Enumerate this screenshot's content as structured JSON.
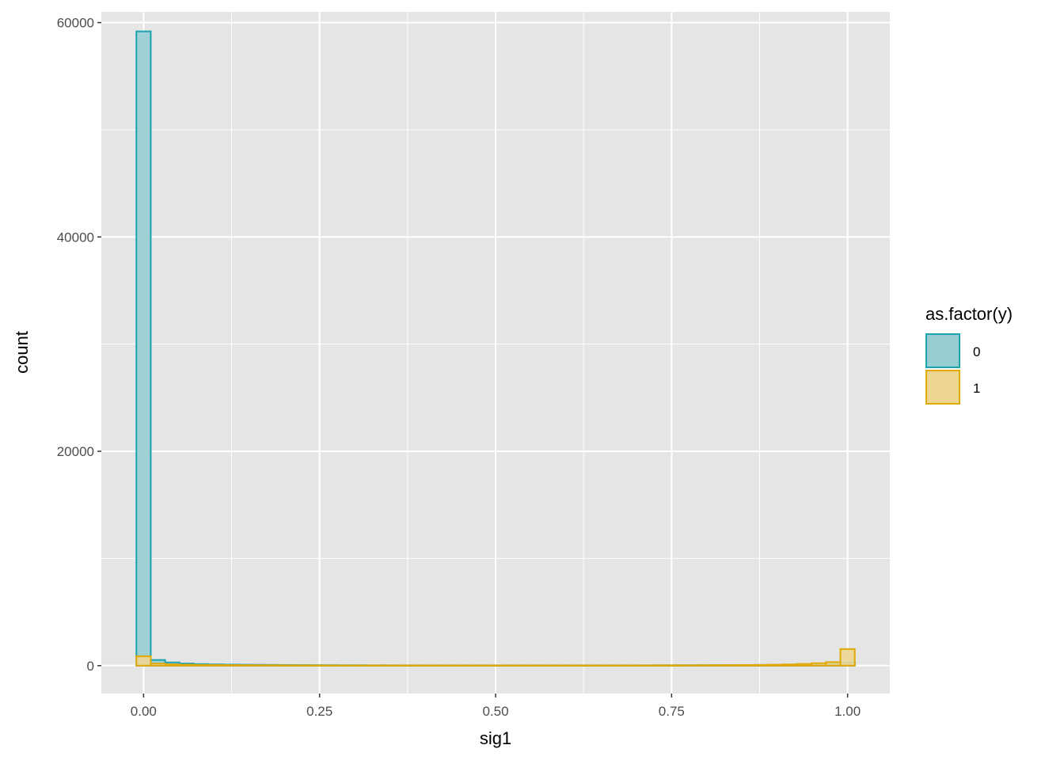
{
  "chart_data": {
    "type": "bar",
    "subtype": "histogram",
    "xlabel": "sig1",
    "ylabel": "count",
    "xlim": [
      -0.06,
      1.06
    ],
    "ylim": [
      -2600,
      61000
    ],
    "x_ticks": [
      0,
      0.25,
      0.5,
      0.75,
      1
    ],
    "x_tick_labels": [
      "0.00",
      "0.25",
      "0.50",
      "0.75",
      "1.00"
    ],
    "y_ticks": [
      0,
      20000,
      40000,
      60000
    ],
    "y_tick_labels": [
      "0",
      "20000",
      "40000",
      "60000"
    ],
    "grid": true,
    "legend": {
      "title": "as.factor(y)",
      "position": "right"
    },
    "bins": 50,
    "series": [
      {
        "name": "0",
        "color": "#1BA3AE",
        "fill": "#96CDD3",
        "values": [
          59180,
          530,
          300,
          200,
          150,
          120,
          100,
          90,
          80,
          70,
          60,
          55,
          50,
          45,
          40,
          40,
          35,
          35,
          30,
          30,
          30,
          30,
          30,
          30,
          30,
          30,
          30,
          30,
          30,
          30,
          30,
          30,
          30,
          30,
          30,
          35,
          35,
          40,
          40,
          45,
          50,
          55,
          60,
          70,
          80,
          90,
          110,
          130,
          170,
          300
        ]
      },
      {
        "name": "1",
        "color": "#E1A904",
        "fill": "#EDD592",
        "values": [
          880,
          200,
          120,
          90,
          70,
          60,
          50,
          45,
          40,
          35,
          30,
          30,
          30,
          25,
          25,
          25,
          25,
          25,
          25,
          25,
          25,
          25,
          25,
          25,
          25,
          25,
          25,
          25,
          25,
          25,
          25,
          25,
          25,
          25,
          25,
          25,
          30,
          30,
          35,
          40,
          45,
          50,
          60,
          70,
          90,
          120,
          160,
          230,
          330,
          1550
        ]
      }
    ]
  }
}
